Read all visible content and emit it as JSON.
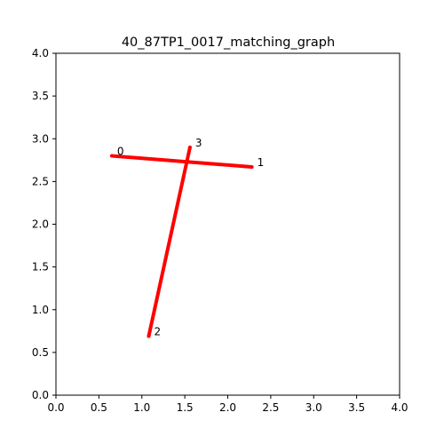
{
  "chart_data": {
    "type": "line",
    "title": "40_87TP1_0017_matching_graph",
    "xlabel": "",
    "ylabel": "",
    "xlim": [
      0.0,
      4.0
    ],
    "ylim": [
      0.0,
      4.0
    ],
    "xticks": [
      "0.0",
      "0.5",
      "1.0",
      "1.5",
      "2.0",
      "2.5",
      "3.0",
      "3.5",
      "4.0"
    ],
    "yticks": [
      "0.0",
      "0.5",
      "1.0",
      "1.5",
      "2.0",
      "2.5",
      "3.0",
      "3.5",
      "4.0"
    ],
    "grid": false,
    "legend": "none",
    "edge_color": "#ff0000",
    "nodes": [
      {
        "label": "0",
        "x": 0.65,
        "y": 2.8
      },
      {
        "label": "1",
        "x": 2.28,
        "y": 2.67
      },
      {
        "label": "2",
        "x": 1.08,
        "y": 0.69
      },
      {
        "label": "3",
        "x": 1.56,
        "y": 2.9
      }
    ],
    "edges": [
      {
        "from": 0,
        "to": 1
      },
      {
        "from": 2,
        "to": 3
      }
    ]
  }
}
